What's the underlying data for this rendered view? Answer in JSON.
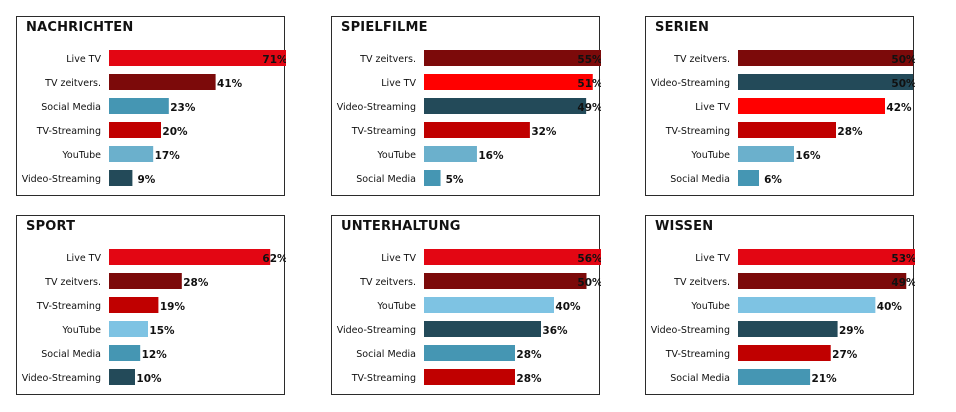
{
  "colors": {
    "live_tv": "#e30613",
    "live_tv_alt": "#ff0000",
    "tv_zeitversetzt": "#7c0a0a",
    "social_media": "#4596b3",
    "tv_streaming": "#c00000",
    "youtube": "#6bb0cc",
    "youtube_light": "#7ec3e3",
    "video_streaming": "#234a59"
  },
  "chart_data": [
    {
      "type": "bar",
      "title": "NACHRICHTEN",
      "categories": [
        "Live TV",
        "TV zeitvers.",
        "Social Media",
        "TV-Streaming",
        "YouTube",
        "Video-Streaming"
      ],
      "values": [
        71,
        41,
        23,
        20,
        17,
        9
      ],
      "value_labels": [
        "71%",
        "41%",
        "23%",
        "20%",
        "17%",
        "9%"
      ],
      "bar_colors": [
        "#e30613",
        "#7c0a0a",
        "#4596b3",
        "#c00000",
        "#6bb0cc",
        "#234a59"
      ],
      "xlim": [
        0,
        70
      ]
    },
    {
      "type": "bar",
      "title": "SPIELFILME",
      "categories": [
        "TV zeitvers.",
        "Live TV",
        "Video-Streaming",
        "TV-Streaming",
        "YouTube",
        "Social Media"
      ],
      "values": [
        55,
        51,
        49,
        32,
        16,
        5
      ],
      "value_labels": [
        "55%",
        "51%",
        "49%",
        "32%",
        "16%",
        "5%"
      ],
      "bar_colors": [
        "#7c0a0a",
        "#ff0000",
        "#234a59",
        "#c00000",
        "#6bb0cc",
        "#4596b3"
      ],
      "xlim": [
        0,
        55
      ]
    },
    {
      "type": "bar",
      "title": "SERIEN",
      "categories": [
        "TV zeitvers.",
        "Video-Streaming",
        "Live TV",
        "TV-Streaming",
        "YouTube",
        "Social Media"
      ],
      "values": [
        50,
        50,
        42,
        28,
        16,
        6
      ],
      "value_labels": [
        "50%",
        "50%",
        "42%",
        "28%",
        "16%",
        "6%"
      ],
      "bar_colors": [
        "#7c0a0a",
        "#234a59",
        "#ff0000",
        "#c00000",
        "#6bb0cc",
        "#4596b3"
      ],
      "xlim": [
        0,
        52
      ]
    },
    {
      "type": "bar",
      "title": "SPORT",
      "categories": [
        "Live TV",
        "TV zeitvers.",
        "TV-Streaming",
        "YouTube",
        "Social Media",
        "Video-Streaming"
      ],
      "values": [
        62,
        28,
        19,
        15,
        12,
        10
      ],
      "value_labels": [
        "62%",
        "28%",
        "19%",
        "15%",
        "12%",
        "10%"
      ],
      "bar_colors": [
        "#e30613",
        "#7c0a0a",
        "#c00000",
        "#7ec3e3",
        "#4596b3",
        "#234a59"
      ],
      "xlim": [
        0,
        70
      ]
    },
    {
      "type": "bar",
      "title": "UNTERHALTUNG",
      "categories": [
        "Live TV",
        "TV zeitvers.",
        "YouTube",
        "Video-Streaming",
        "Social Media",
        "TV-Streaming"
      ],
      "values": [
        56,
        50,
        40,
        36,
        28,
        28
      ],
      "value_labels": [
        "56%",
        "50%",
        "40%",
        "36%",
        "28%",
        "28%"
      ],
      "bar_colors": [
        "#e30613",
        "#7c0a0a",
        "#7ec3e3",
        "#234a59",
        "#4596b3",
        "#c00000"
      ],
      "xlim": [
        0,
        56
      ]
    },
    {
      "type": "bar",
      "title": "WISSEN",
      "categories": [
        "Live TV",
        "TV zeitvers.",
        "YouTube",
        "Video-Streaming",
        "TV-Streaming",
        "Social Media"
      ],
      "values": [
        53,
        49,
        40,
        29,
        27,
        21
      ],
      "value_labels": [
        "53%",
        "49%",
        "40%",
        "29%",
        "27%",
        "21%"
      ],
      "bar_colors": [
        "#e30613",
        "#7c0a0a",
        "#7ec3e3",
        "#234a59",
        "#c00000",
        "#4596b3"
      ],
      "xlim": [
        0,
        53
      ]
    }
  ]
}
